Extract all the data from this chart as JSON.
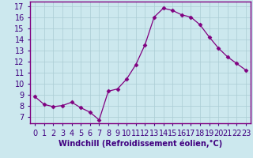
{
  "x": [
    0,
    1,
    2,
    3,
    4,
    5,
    6,
    7,
    8,
    9,
    10,
    11,
    12,
    13,
    14,
    15,
    16,
    17,
    18,
    19,
    20,
    21,
    22,
    23
  ],
  "y": [
    8.8,
    8.1,
    7.9,
    8.0,
    8.3,
    7.8,
    7.4,
    6.7,
    9.3,
    9.5,
    10.4,
    11.7,
    13.5,
    16.0,
    16.8,
    16.6,
    16.2,
    16.0,
    15.3,
    14.2,
    13.2,
    12.4,
    11.8,
    11.2
  ],
  "line_color": "#800080",
  "marker": "D",
  "marker_size": 2.5,
  "bg_color": "#cce8ee",
  "grid_color": "#aaccd4",
  "xlabel": "Windchill (Refroidissement éolien,°C)",
  "xlabel_fontsize": 7,
  "xtick_labels": [
    "0",
    "1",
    "2",
    "3",
    "4",
    "5",
    "6",
    "7",
    "8",
    "9",
    "10",
    "11",
    "12",
    "13",
    "14",
    "15",
    "16",
    "17",
    "18",
    "19",
    "20",
    "21",
    "22",
    "23"
  ],
  "ylim": [
    6.4,
    17.4
  ],
  "yticks": [
    7,
    8,
    9,
    10,
    11,
    12,
    13,
    14,
    15,
    16,
    17
  ],
  "tick_fontsize": 7,
  "spine_color": "#800080",
  "tick_color": "#400080"
}
